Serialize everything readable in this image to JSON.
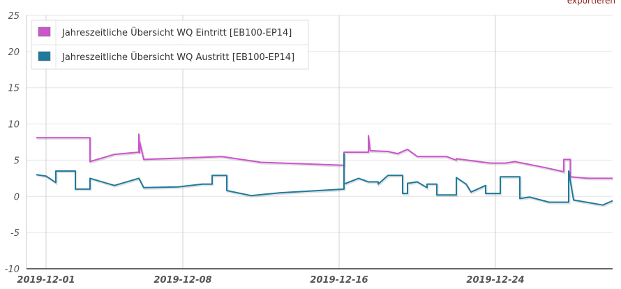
{
  "export_label": "exportieren",
  "colors": {
    "series1": "#cc55cc",
    "series2": "#1f7a9c",
    "grid": "#e4e4e4",
    "vgrid": "#d0d0d0"
  },
  "chart_data": {
    "type": "line",
    "title": "",
    "xlabel": "",
    "ylabel": "",
    "ylim": [
      -10,
      25
    ],
    "xlim": [
      "2019-11-30",
      "2019-12-30"
    ],
    "yticks": [
      "25",
      "20",
      "15",
      "10",
      "5",
      "0",
      "-5",
      "-10"
    ],
    "xticks": [
      "2019-12-01",
      "2019-12-08",
      "2019-12-16",
      "2019-12-24"
    ],
    "legend_position": "top-left",
    "grid": true,
    "series": [
      {
        "name": "Jahreszeitliche Übersicht WQ Eintritt [EB100-EP14]",
        "x": [
          "2019-11-30T12:00",
          "2019-12-03T06:00",
          "2019-12-03T06:00",
          "2019-12-04T12:00",
          "2019-12-05T18:00",
          "2019-12-05T18:00",
          "2019-12-05T19:00",
          "2019-12-05T19:00",
          "2019-12-06T00:00",
          "2019-12-06T00:00",
          "2019-12-10T00:00",
          "2019-12-12T00:00",
          "2019-12-16T06:00",
          "2019-12-16T06:00",
          "2019-12-17T12:00",
          "2019-12-17T12:00",
          "2019-12-17T14:00",
          "2019-12-17T14:00",
          "2019-12-18T12:00",
          "2019-12-19T00:00",
          "2019-12-19T12:00",
          "2019-12-20T00:00",
          "2019-12-21T12:00",
          "2019-12-22T00:00",
          "2019-12-22T00:00",
          "2019-12-23T18:00",
          "2019-12-24T12:00",
          "2019-12-25T00:00",
          "2019-12-26T12:00",
          "2019-12-27T12:00",
          "2019-12-27T12:00",
          "2019-12-27T20:00",
          "2019-12-27T20:00",
          "2019-12-28T18:00",
          "2019-12-30T00:00"
        ],
        "y": [
          8.1,
          8.1,
          4.8,
          5.8,
          6.1,
          8.6,
          6.0,
          7.5,
          5.1,
          5.1,
          5.5,
          4.7,
          4.3,
          6.1,
          6.1,
          8.4,
          6.4,
          6.3,
          6.2,
          5.9,
          6.5,
          5.5,
          5.5,
          5.0,
          5.2,
          4.6,
          4.6,
          4.8,
          4.0,
          3.4,
          5.1,
          5.1,
          2.7,
          2.5,
          2.5
        ]
      },
      {
        "name": "Jahreszeitliche Übersicht WQ Austritt [EB100-EP14]",
        "x": [
          "2019-11-30T12:00",
          "2019-12-01T00:00",
          "2019-12-01T12:00",
          "2019-12-01T12:00",
          "2019-12-02T12:00",
          "2019-12-02T12:00",
          "2019-12-03T06:00",
          "2019-12-03T06:00",
          "2019-12-04T12:00",
          "2019-12-05T18:00",
          "2019-12-06T00:00",
          "2019-12-06T00:00",
          "2019-12-07T18:00",
          "2019-12-09T00:00",
          "2019-12-09T12:00",
          "2019-12-09T12:00",
          "2019-12-10T06:00",
          "2019-12-10T06:00",
          "2019-12-11T12:00",
          "2019-12-13T00:00",
          "2019-12-16T06:00",
          "2019-12-16T06:00",
          "2019-12-16T06:00",
          "2019-12-17T00:00",
          "2019-12-17T12:00",
          "2019-12-18T00:00",
          "2019-12-18T00:00",
          "2019-12-18T12:00",
          "2019-12-19T06:00",
          "2019-12-19T06:00",
          "2019-12-19T12:00",
          "2019-12-19T12:00",
          "2019-12-20T00:00",
          "2019-12-20T12:00",
          "2019-12-20T12:00",
          "2019-12-21T00:00",
          "2019-12-21T00:00",
          "2019-12-21T12:00",
          "2019-12-22T00:00",
          "2019-12-22T00:00",
          "2019-12-22T12:00",
          "2019-12-22T12:00",
          "2019-12-22T18:00",
          "2019-12-22T18:00",
          "2019-12-23T12:00",
          "2019-12-23T12:00",
          "2019-12-24T06:00",
          "2019-12-24T06:00",
          "2019-12-25T06:00",
          "2019-12-25T06:00",
          "2019-12-25T18:00",
          "2019-12-25T18:00",
          "2019-12-26T18:00",
          "2019-12-27T18:00",
          "2019-12-27T18:00",
          "2019-12-28T00:00",
          "2019-12-29T12:00",
          "2019-12-30T00:00"
        ],
        "y": [
          3.0,
          2.8,
          1.9,
          3.5,
          3.5,
          1.0,
          1.0,
          2.5,
          1.5,
          2.5,
          1.2,
          1.2,
          1.3,
          1.7,
          1.7,
          2.9,
          2.9,
          0.8,
          0.1,
          0.5,
          1.0,
          5.9,
          1.7,
          2.5,
          2.0,
          2.0,
          1.7,
          2.9,
          2.9,
          0.4,
          0.4,
          1.8,
          2.0,
          1.2,
          1.7,
          1.7,
          0.2,
          0.2,
          0.2,
          2.6,
          1.7,
          1.7,
          0.6,
          0.6,
          1.5,
          0.4,
          0.4,
          2.7,
          2.7,
          -0.3,
          -0.1,
          -0.1,
          -0.8,
          -0.8,
          3.5,
          -0.5,
          -1.2,
          -0.6
        ]
      }
    ]
  }
}
